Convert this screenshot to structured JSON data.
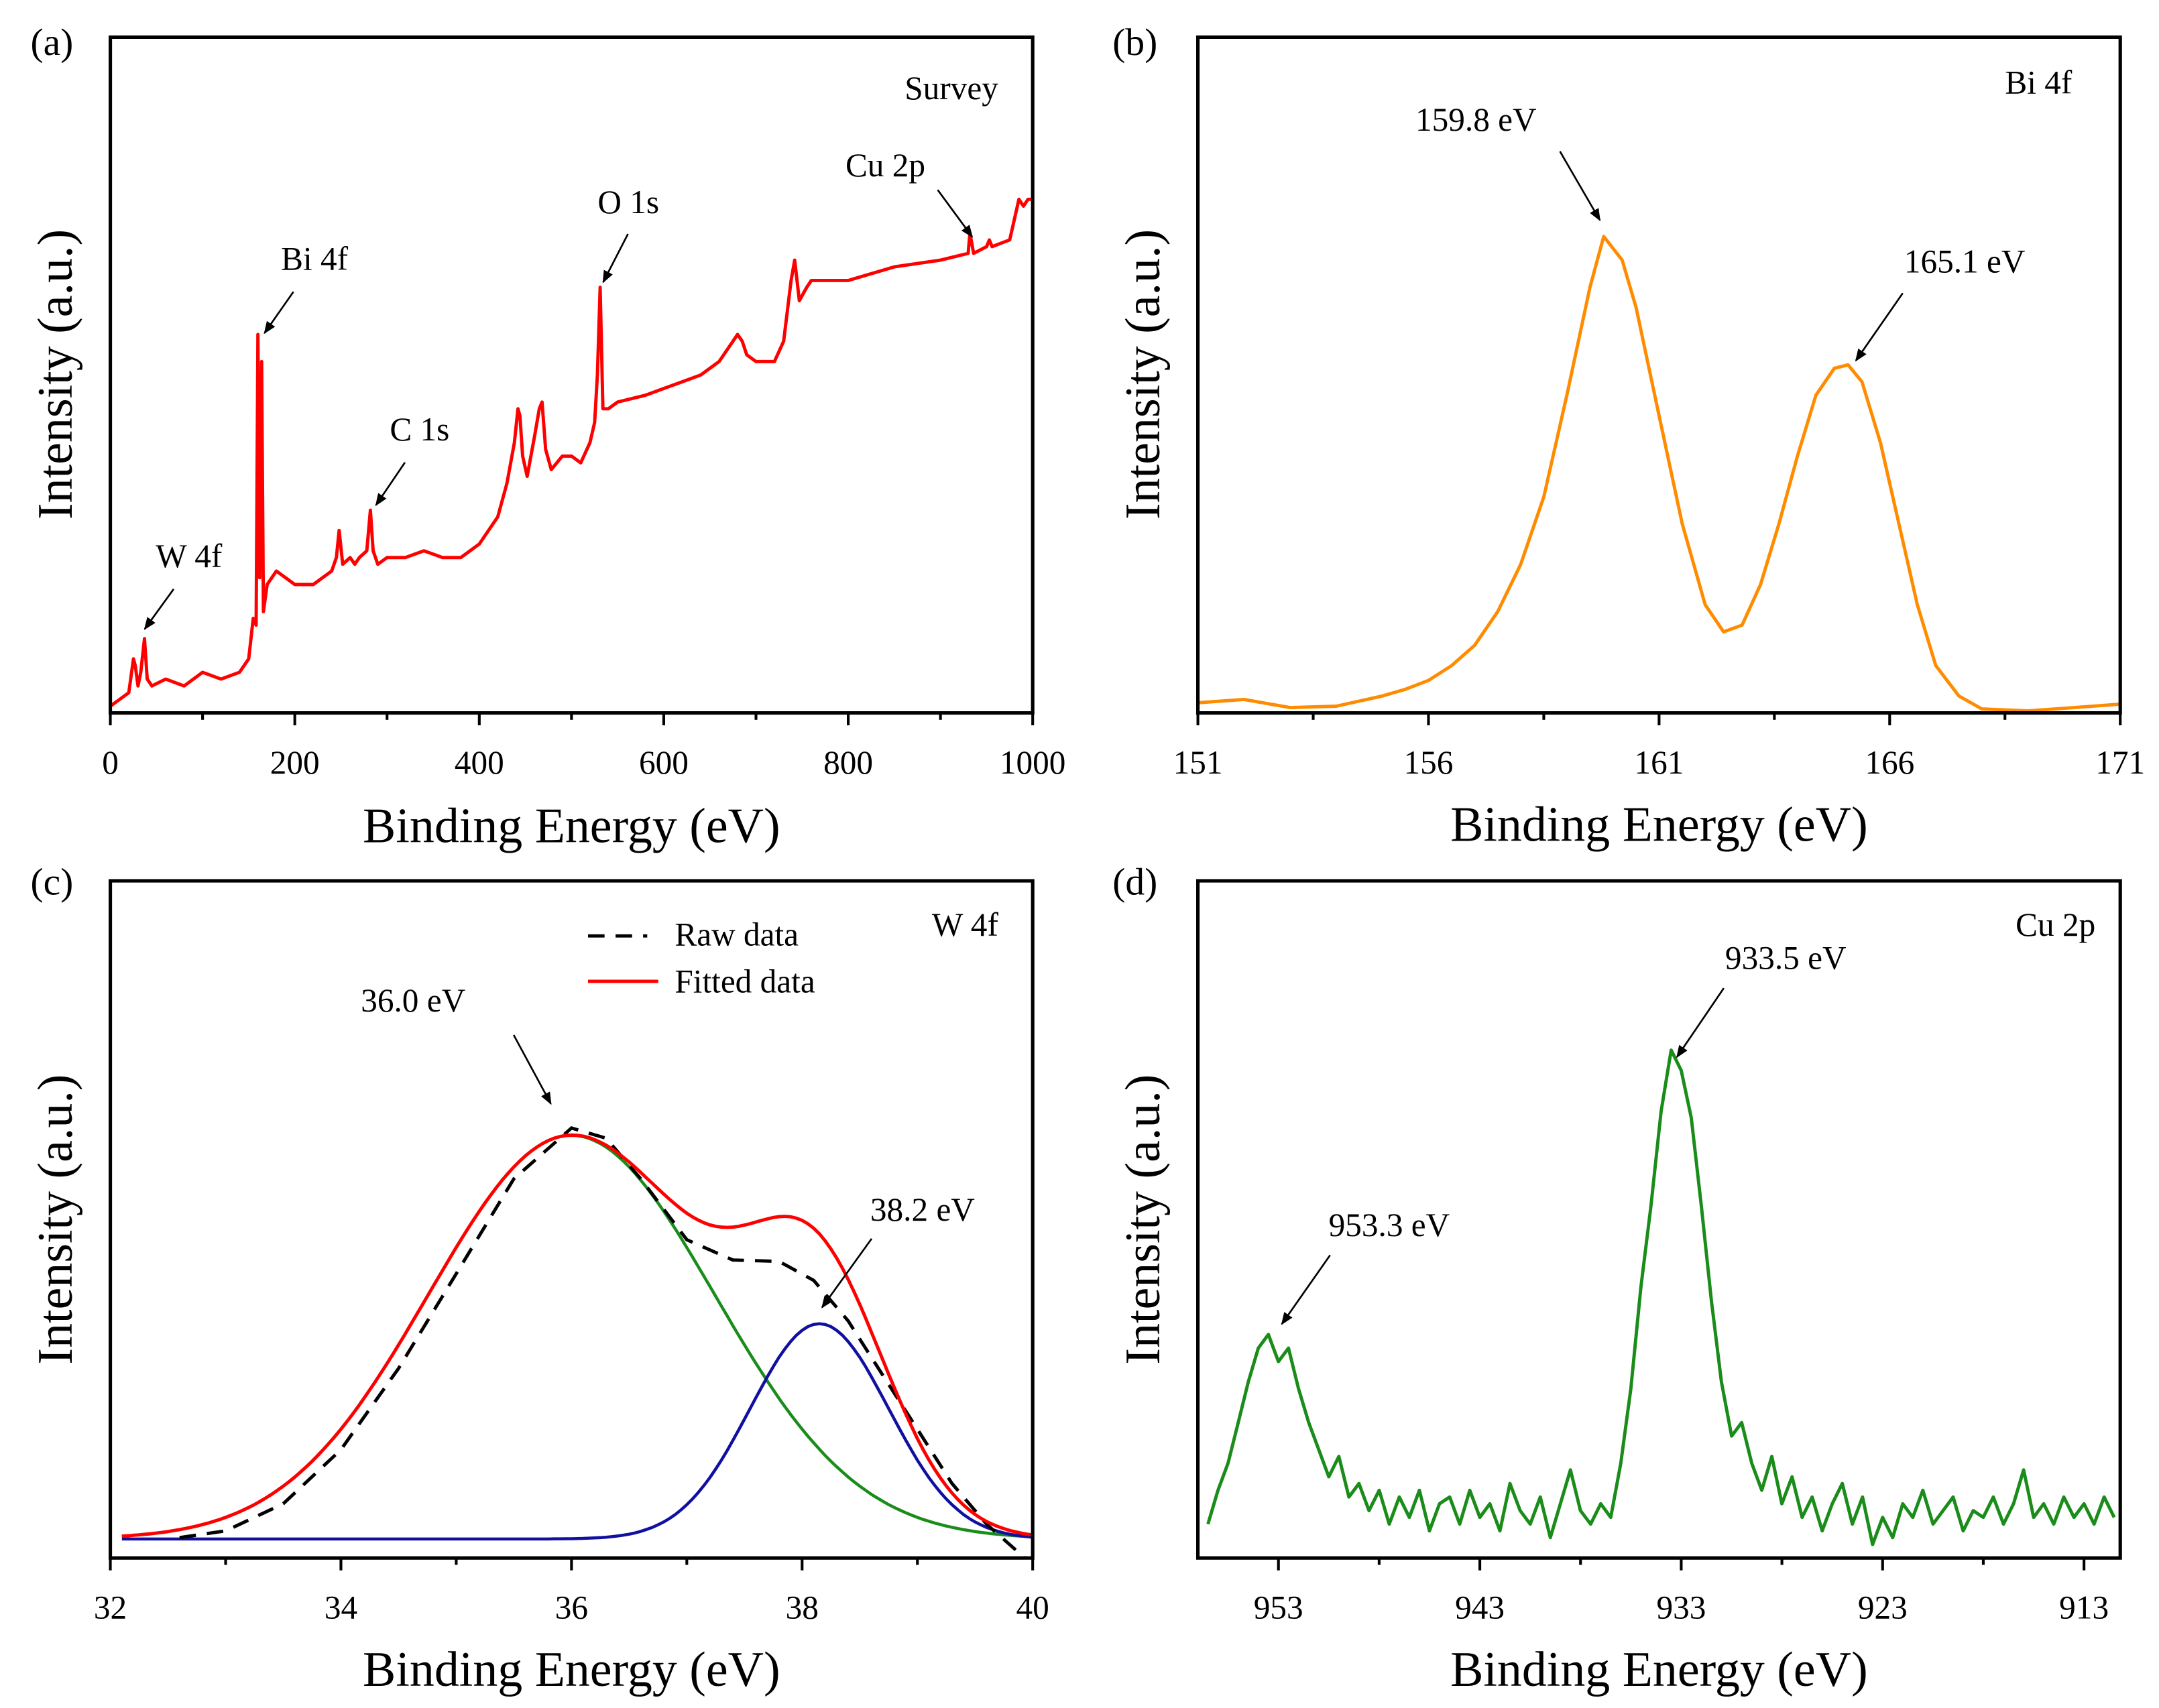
{
  "chart_data": [
    {
      "panel_label": "(a)",
      "type": "line",
      "tag": "Survey",
      "xlabel": "Binding Energy (eV)",
      "ylabel": "Intensity (a.u.)",
      "xlim": [
        0,
        1000
      ],
      "ylim": [
        0,
        100
      ],
      "xticks": [
        0,
        200,
        400,
        600,
        800,
        1000
      ],
      "xtick_labels": [
        "0",
        "200",
        "400",
        "600",
        "800",
        "1000"
      ],
      "minor_step": 100,
      "reversed": false,
      "series": [
        {
          "name": "Survey",
          "color": "#ff0000",
          "style": "solid",
          "x": [
            0,
            10,
            20,
            25,
            27,
            30,
            33,
            37,
            40,
            45,
            60,
            80,
            100,
            120,
            140,
            150,
            155,
            158,
            160,
            162,
            164,
            166,
            170,
            180,
            190,
            200,
            220,
            240,
            245,
            248,
            252,
            260,
            265,
            270,
            278,
            282,
            285,
            290,
            300,
            320,
            340,
            360,
            380,
            400,
            420,
            430,
            438,
            442,
            444,
            447,
            452,
            460,
            465,
            468,
            472,
            478,
            490,
            500,
            510,
            520,
            525,
            528,
            531,
            534,
            540,
            550,
            580,
            600,
            640,
            660,
            675,
            680,
            685,
            690,
            700,
            720,
            730,
            738,
            742,
            747,
            755,
            760,
            770,
            800,
            850,
            900,
            930,
            932,
            936,
            950,
            953,
            956,
            975,
            985,
            990,
            995,
            1000
          ],
          "y": [
            1,
            2,
            3,
            8,
            7,
            4,
            6,
            11,
            5,
            4,
            5,
            4,
            6,
            5,
            6,
            8,
            14,
            13,
            56,
            20,
            52,
            15,
            19,
            21,
            20,
            19,
            19,
            21,
            23,
            27,
            22,
            23,
            22,
            23,
            24,
            30,
            24,
            22,
            23,
            23,
            24,
            23,
            23,
            25,
            29,
            34,
            40,
            45,
            44,
            38,
            35,
            41,
            45,
            46,
            39,
            36,
            38,
            38,
            37,
            40,
            43,
            50,
            63,
            45,
            45,
            46,
            47,
            48,
            50,
            52,
            55,
            56,
            55,
            53,
            52,
            52,
            55,
            64,
            67,
            61,
            63,
            64,
            64,
            64,
            66,
            67,
            68,
            71,
            68,
            69,
            70,
            69,
            70,
            76,
            75,
            76,
            76
          ]
        }
      ],
      "annotations": [
        "W 4f",
        "Bi 4f",
        "C 1s",
        "O 1s",
        "Cu 2p"
      ]
    },
    {
      "panel_label": "(b)",
      "type": "line",
      "tag": "Bi 4f",
      "xlabel": "Binding Energy (eV)",
      "ylabel": "Intensity (a.u.)",
      "xlim": [
        151,
        171
      ],
      "ylim": [
        0,
        100
      ],
      "xticks": [
        151,
        156,
        161,
        166,
        171
      ],
      "xtick_labels": [
        "151",
        "156",
        "161",
        "166",
        "171"
      ],
      "minor_step": 2.5,
      "reversed": false,
      "series": [
        {
          "name": "Bi 4f",
          "color": "#ff8c00",
          "style": "solid",
          "x": [
            151,
            152,
            153,
            154,
            155,
            155.5,
            156,
            156.5,
            157,
            157.5,
            158,
            158.5,
            159,
            159.5,
            159.8,
            160.2,
            160.5,
            161,
            161.5,
            162,
            162.4,
            162.8,
            163.2,
            163.6,
            164,
            164.4,
            164.8,
            165.1,
            165.4,
            165.8,
            166.2,
            166.6,
            167,
            167.5,
            168,
            169,
            170,
            171
          ],
          "y": [
            1.5,
            2,
            0.8,
            1,
            2.5,
            3.5,
            4.8,
            7,
            10,
            15,
            22,
            32,
            47,
            63,
            70.5,
            67,
            60,
            44,
            28,
            16,
            12,
            13,
            19,
            28,
            38,
            47,
            51,
            51.5,
            49,
            40,
            28,
            16,
            7,
            2.5,
            0.6,
            0.3,
            0.8,
            1.3
          ]
        }
      ],
      "annotations": [
        "159.8 eV",
        "165.1 eV"
      ]
    },
    {
      "panel_label": "(c)",
      "type": "line",
      "tag": "W 4f",
      "xlabel": "Binding Energy (eV)",
      "ylabel": "Intensity (a.u.)",
      "xlim": [
        32,
        40
      ],
      "ylim": [
        0,
        100
      ],
      "xticks": [
        32,
        34,
        36,
        38,
        40
      ],
      "xtick_labels": [
        "32",
        "34",
        "36",
        "38",
        "40"
      ],
      "minor_step": 1,
      "reversed": false,
      "legend": {
        "position": "top-center",
        "entries": [
          "Raw data",
          "Fitted data"
        ]
      },
      "baseline": 2.8,
      "components": [
        {
          "name": "Peak 36.0 eV",
          "color": "#1a8c1a",
          "center": 36.0,
          "height": 59.6,
          "sigma": 1.24
        },
        {
          "name": "Peak 38.2 eV",
          "color": "#1010a0",
          "center": 38.15,
          "height": 31.8,
          "sigma": 0.6
        }
      ],
      "series": [
        {
          "name": "Raw data",
          "color": "#000000",
          "style": "dashed",
          "x": [
            32.6,
            33,
            33.5,
            34,
            34.5,
            35,
            35.5,
            36,
            36.3,
            36.6,
            37,
            37.4,
            37.8,
            38.1,
            38.4,
            38.7,
            39,
            39.3,
            39.6,
            39.8,
            40
          ],
          "y": [
            3,
            4,
            8,
            16,
            28,
            42,
            56,
            63.5,
            62,
            56,
            47,
            44,
            43.8,
            41,
            35,
            27,
            19,
            11,
            5,
            2,
            -1
          ]
        },
        {
          "name": "Fitted data",
          "color": "#ff0000",
          "style": "solid",
          "fit": true
        }
      ],
      "annotations": [
        "36.0 eV",
        "38.2 eV"
      ]
    },
    {
      "panel_label": "(d)",
      "type": "line",
      "tag": "Cu 2p",
      "xlabel": "Binding Energy (eV)",
      "ylabel": "Intensity (a.u.)",
      "xlim": [
        957,
        911.2
      ],
      "ylim": [
        0,
        100
      ],
      "xticks": [
        953,
        943,
        933,
        923,
        913
      ],
      "xtick_labels": [
        "953",
        "943",
        "933",
        "923",
        "913"
      ],
      "minor_step": 5,
      "reversed": true,
      "series": [
        {
          "name": "Cu 2p",
          "color": "#1a8c1a",
          "style": "solid",
          "x": [
            956.5,
            956,
            955.5,
            955,
            954.5,
            954,
            953.5,
            953,
            952.5,
            952,
            951.5,
            951,
            950.5,
            950,
            949.5,
            949,
            948.5,
            948,
            947.5,
            947,
            946.5,
            946,
            945.5,
            945,
            944.5,
            944,
            943.5,
            943,
            942.5,
            942,
            941.5,
            941,
            940.5,
            940,
            939.5,
            939,
            938.5,
            938,
            937.5,
            937,
            936.5,
            936,
            935.5,
            935,
            934.5,
            934,
            933.5,
            933,
            932.5,
            932,
            931.5,
            931,
            930.5,
            930,
            929.5,
            929,
            928.5,
            928,
            927.5,
            927,
            926.5,
            926,
            925.5,
            925,
            924.5,
            924,
            923.5,
            923,
            922.5,
            922,
            921.5,
            921,
            920.5,
            920,
            919.5,
            919,
            918.5,
            918,
            917.5,
            917,
            916.5,
            916,
            915.5,
            915,
            914.5,
            914,
            913.5,
            913,
            912.5,
            912,
            911.5
          ],
          "y": [
            5,
            10,
            14,
            20,
            26,
            31,
            33,
            29,
            31,
            25,
            20,
            16,
            12,
            15,
            9,
            11,
            7,
            10,
            5,
            9,
            6,
            10,
            4,
            8,
            9,
            5,
            10,
            6,
            8,
            4,
            11,
            7,
            5,
            9,
            3,
            8,
            13,
            7,
            5,
            8,
            6,
            14,
            25,
            40,
            52,
            66,
            75,
            72,
            65,
            52,
            38,
            26,
            18,
            20,
            14,
            10,
            15,
            8,
            12,
            6,
            9,
            4,
            8,
            11,
            5,
            9,
            2,
            6,
            3,
            8,
            6,
            10,
            5,
            7,
            9,
            4,
            7,
            6,
            9,
            5,
            8,
            13,
            6,
            8,
            5,
            9,
            6,
            8,
            5,
            9,
            6
          ]
        }
      ],
      "annotations": [
        "933.5 eV",
        "953.3 eV"
      ]
    }
  ]
}
